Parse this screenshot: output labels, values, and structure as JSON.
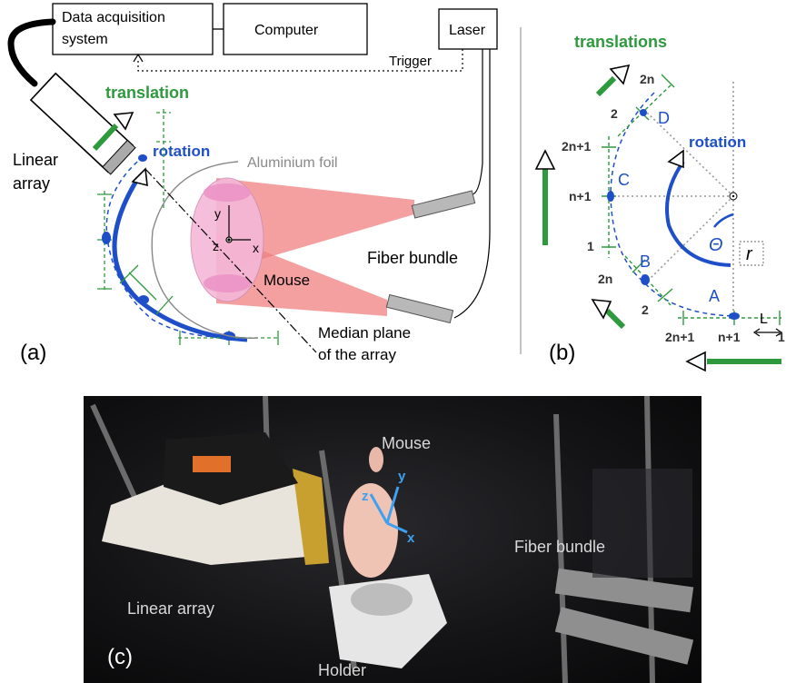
{
  "panel_a": {
    "label": "(a)",
    "daq_line1": "Data acquisition",
    "daq_line2": "system",
    "computer": "Computer",
    "laser": "Laser",
    "trigger": "Trigger",
    "translation": "translation",
    "rotation": "rotation",
    "linear_array_line1": "Linear",
    "linear_array_line2": "array",
    "aluminium_foil": "Aluminium foil",
    "fiber_bundle": "Fiber bundle",
    "mouse": "Mouse",
    "median_line1": "Median plane",
    "median_line2": "of the array",
    "axis_x": "x",
    "axis_y": "y",
    "axis_z": "z"
  },
  "panel_b": {
    "label": "(b)",
    "translations": "translations",
    "rotation": "rotation",
    "theta": "Θ",
    "r": "r",
    "L": "L",
    "points": {
      "A": "A",
      "B": "B",
      "C": "C",
      "D": "D"
    },
    "ticks": {
      "top_2n": "2n",
      "top_2": "2",
      "left_2n1": "2n+1",
      "left_n1": "n+1",
      "left_1": "1",
      "lower_2n": "2n",
      "lower_2": "2",
      "bottom_2n1": "2n+1",
      "bottom_n1": "n+1",
      "bottom_1": "1"
    }
  },
  "panel_c": {
    "label": "(c)",
    "mouse": "Mouse",
    "linear_array": "Linear array",
    "fiber_bundle": "Fiber bundle",
    "holder": "Holder",
    "axis_x": "x",
    "axis_y": "y",
    "axis_z": "z"
  },
  "colors": {
    "green": "#2e9a3e",
    "blue": "#1f4fc8",
    "light_red": "#f08080",
    "pink": "#f5b8d8"
  }
}
